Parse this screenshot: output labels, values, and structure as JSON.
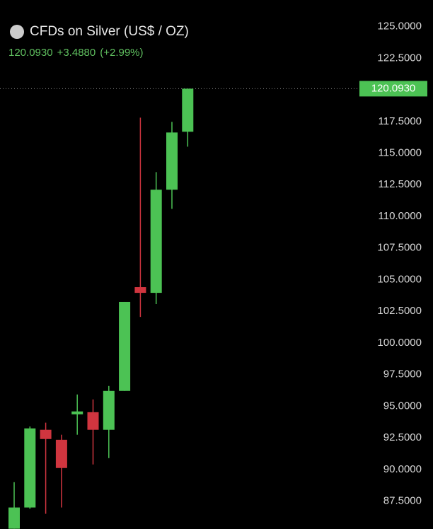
{
  "chart_data": {
    "type": "candlestick",
    "title": "CFDs on Silver (US$ / OZ)",
    "last": {
      "value": 120.093,
      "label": "120.0930"
    },
    "change": {
      "value": 3.488,
      "label": "+3.4880"
    },
    "change_pct": {
      "value": 2.99,
      "label": "(+2.99%)"
    },
    "up_color": "#4cc254",
    "down_color": "#d0353f",
    "open": [
      85.32,
      87.0,
      93.14,
      92.35,
      94.36,
      94.53,
      93.14,
      96.21,
      104.41,
      103.96,
      112.11,
      116.69
    ],
    "high": [
      89.0,
      93.4,
      93.7,
      92.75,
      95.93,
      95.54,
      96.6,
      103.24,
      117.8,
      113.5,
      117.47,
      120.093
    ],
    "low": [
      85.32,
      86.9,
      86.5,
      87.0,
      92.75,
      90.4,
      90.9,
      96.21,
      102.06,
      103.07,
      110.6,
      115.51
    ],
    "close": [
      87.0,
      93.25,
      92.41,
      90.12,
      94.59,
      93.14,
      96.21,
      103.24,
      103.96,
      112.11,
      116.63,
      120.093
    ],
    "ylim": [
      85.3,
      127.1
    ],
    "yticks": [
      {
        "value": 87.5,
        "label": "87.5000"
      },
      {
        "value": 90,
        "label": "90.0000"
      },
      {
        "value": 92.5,
        "label": "92.5000"
      },
      {
        "value": 95,
        "label": "95.0000"
      },
      {
        "value": 97.5,
        "label": "97.5000"
      },
      {
        "value": 100,
        "label": "100.0000"
      },
      {
        "value": 102.5,
        "label": "102.5000"
      },
      {
        "value": 105,
        "label": "105.0000"
      },
      {
        "value": 107.5,
        "label": "107.5000"
      },
      {
        "value": 110,
        "label": "110.0000"
      },
      {
        "value": 112.5,
        "label": "112.5000"
      },
      {
        "value": 115,
        "label": "115.0000"
      },
      {
        "value": 117.5,
        "label": "117.5000"
      },
      {
        "value": 122.5,
        "label": "122.5000"
      },
      {
        "value": 125,
        "label": "125.0000"
      }
    ]
  }
}
